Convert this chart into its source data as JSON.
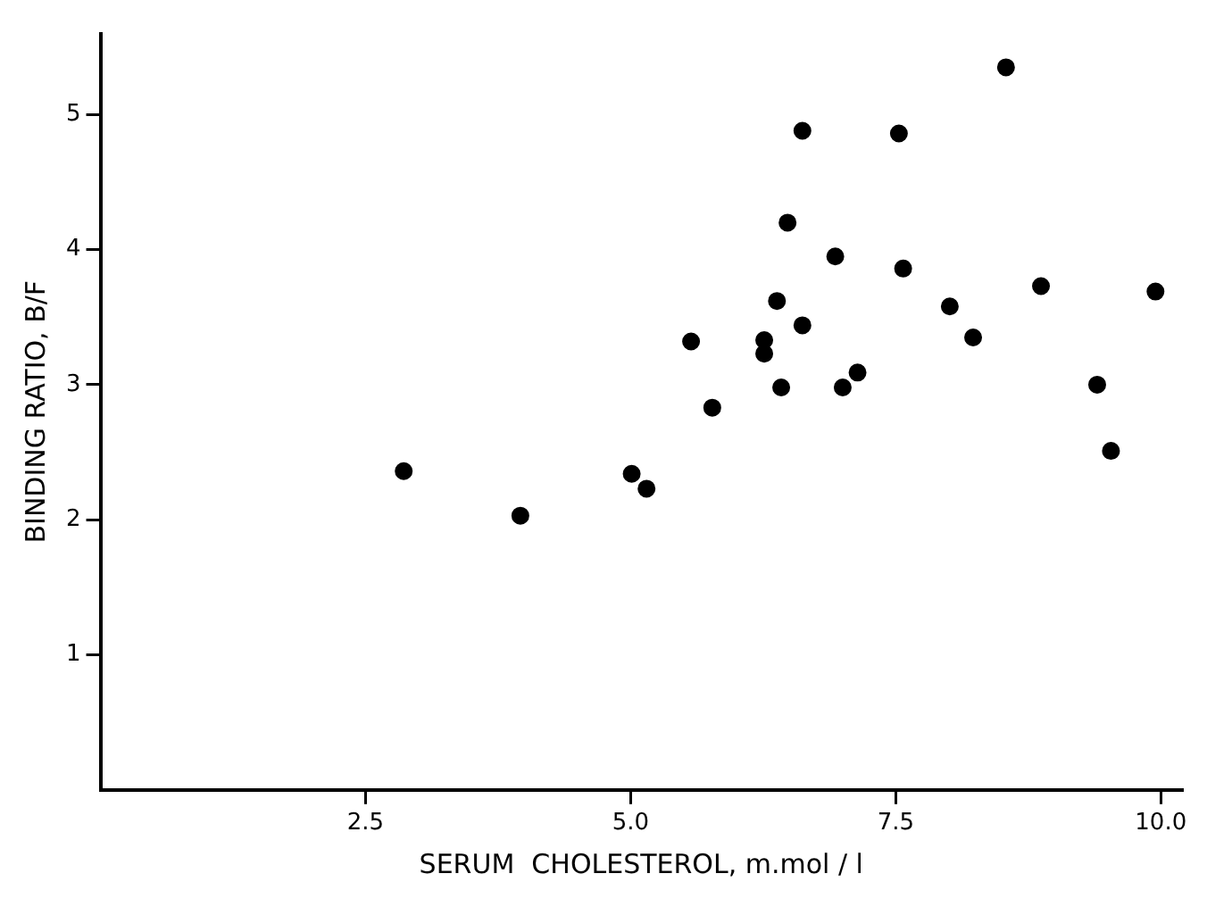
{
  "chart_data": {
    "type": "scatter",
    "xlabel": "SERUM  CHOLESTEROL, m.mol / l",
    "ylabel": "BINDING RATIO, B/F",
    "x": [
      8.54,
      6.62,
      7.53,
      6.48,
      6.93,
      7.57,
      8.87,
      9.95,
      6.38,
      8.01,
      6.62,
      5.57,
      6.26,
      6.26,
      8.23,
      7.14,
      6.42,
      7.0,
      9.4,
      5.77,
      9.53,
      2.86,
      3.96,
      5.01,
      5.15
    ],
    "series": [
      {
        "color": "#000000",
        "values": [
          5.35,
          4.88,
          4.86,
          4.2,
          3.95,
          3.86,
          3.73,
          3.69,
          3.62,
          3.58,
          3.44,
          3.32,
          3.33,
          3.23,
          3.35,
          3.09,
          2.98,
          2.98,
          3.0,
          2.83,
          2.51,
          2.36,
          2.03,
          2.34,
          2.23
        ]
      }
    ],
    "xlim": [
      0,
      10.2
    ],
    "xticks": [
      2.5,
      {
        "value": 5,
        "label": "5.0"
      },
      7.5,
      {
        "value": 10,
        "label": "10.0"
      }
    ],
    "ylim": [
      0,
      5.6
    ],
    "yticks": [
      1,
      2,
      3,
      4,
      5
    ],
    "grid": false,
    "legend": false,
    "marker": "circle"
  }
}
